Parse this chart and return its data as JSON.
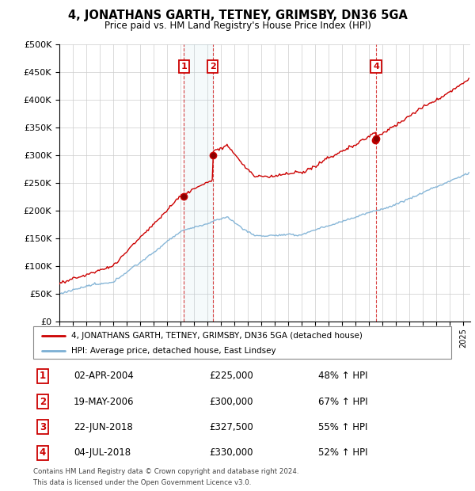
{
  "title": "4, JONATHANS GARTH, TETNEY, GRIMSBY, DN36 5GA",
  "subtitle": "Price paid vs. HM Land Registry's House Price Index (HPI)",
  "ylabel_ticks": [
    "£0",
    "£50K",
    "£100K",
    "£150K",
    "£200K",
    "£250K",
    "£300K",
    "£350K",
    "£400K",
    "£450K",
    "£500K"
  ],
  "ylim": [
    0,
    500000
  ],
  "xlim_start": 1995.0,
  "xlim_end": 2025.5,
  "hpi_color": "#7bafd4",
  "price_color": "#cc0000",
  "purchases": [
    {
      "label": "1",
      "date_str": "02-APR-2004",
      "year": 2004.25,
      "price": 225000
    },
    {
      "label": "2",
      "date_str": "19-MAY-2006",
      "year": 2006.38,
      "price": 300000
    },
    {
      "label": "3",
      "date_str": "22-JUN-2018",
      "year": 2018.47,
      "price": 327500
    },
    {
      "label": "4",
      "date_str": "04-JUL-2018",
      "year": 2018.51,
      "price": 330000
    }
  ],
  "legend_line1": "4, JONATHANS GARTH, TETNEY, GRIMSBY, DN36 5GA (detached house)",
  "legend_line2": "HPI: Average price, detached house, East Lindsey",
  "footer1": "Contains HM Land Registry data © Crown copyright and database right 2024.",
  "footer2": "This data is licensed under the Open Government Licence v3.0.",
  "table_rows": [
    [
      "1",
      "02-APR-2004",
      "£225,000",
      "48% ↑ HPI"
    ],
    [
      "2",
      "19-MAY-2006",
      "£300,000",
      "67% ↑ HPI"
    ],
    [
      "3",
      "22-JUN-2018",
      "£327,500",
      "55% ↑ HPI"
    ],
    [
      "4",
      "04-JUL-2018",
      "£330,000",
      "52% ↑ HPI"
    ]
  ]
}
